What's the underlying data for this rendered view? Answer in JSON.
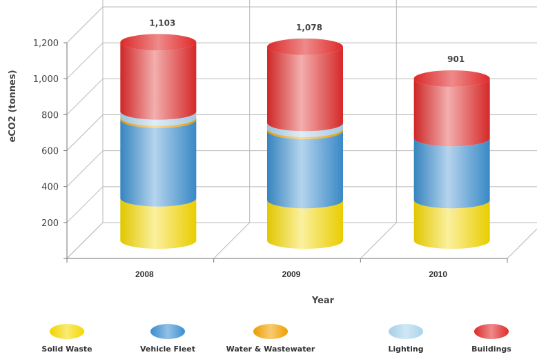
{
  "chart_data": {
    "type": "bar",
    "style": "stacked-3d-cylinder",
    "title": "",
    "xlabel": "Year",
    "ylabel": "eCO2 (tonnes)",
    "ylim": [
      0,
      1200
    ],
    "yticks": [
      "200",
      "400",
      "600",
      "800",
      "1,000",
      "1,200"
    ],
    "grid": true,
    "legend_position": "bottom",
    "categories": [
      "2008",
      "2009",
      "2010"
    ],
    "totals_labels": [
      "1,103",
      "1,078",
      "901"
    ],
    "series": [
      {
        "name": "Solid Waste",
        "color": "#f5d800",
        "values": [
          235,
          225,
          225
        ]
      },
      {
        "name": "Vehicle Fleet",
        "color": "#3b8fd0",
        "values": [
          437,
          385,
          345
        ]
      },
      {
        "name": "Water & Wastewater",
        "color": "#f0a000",
        "values": [
          12,
          12,
          0
        ]
      },
      {
        "name": "Lighting",
        "color": "#a9d3ec",
        "values": [
          34,
          32,
          0
        ]
      },
      {
        "name": "Buildings",
        "color": "#e02a2a",
        "values": [
          385,
          424,
          331
        ]
      }
    ]
  }
}
